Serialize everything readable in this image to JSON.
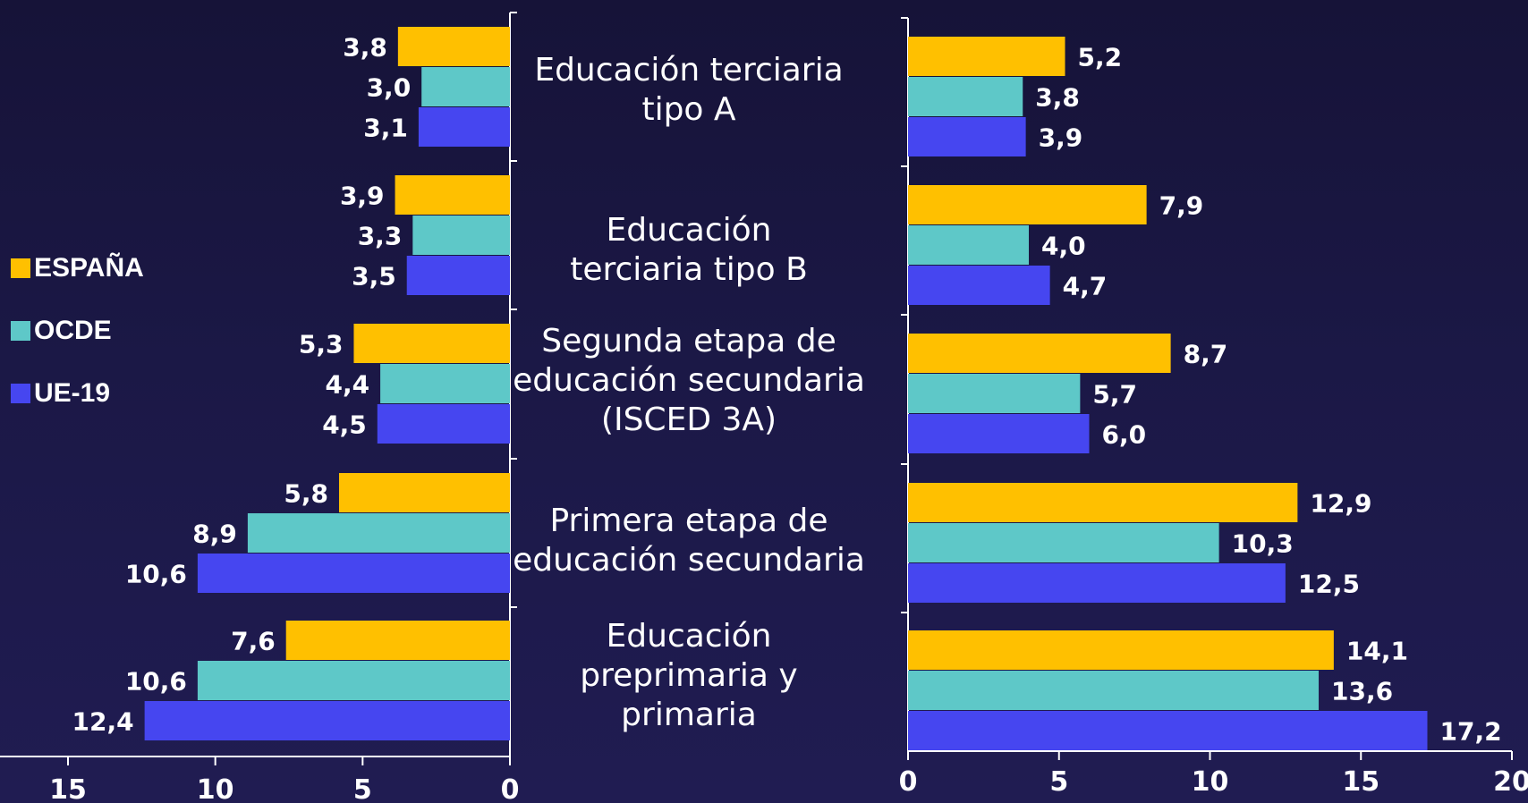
{
  "chart_data": [
    {
      "type": "bar",
      "orientation": "horizontal",
      "x_reversed": true,
      "categories": [
        "Educación terciaria tipo A",
        "Educación terciaria tipo B",
        "Segunda etapa de educación secundaria (ISCED 3A)",
        "Primera etapa de educación secundaria",
        "Educación preprimaria y primaria"
      ],
      "series": [
        {
          "name": "ESPAÑA",
          "color": "#ffc000",
          "values": [
            3.8,
            3.9,
            5.3,
            5.8,
            7.6
          ],
          "labels": [
            "3,8",
            "3,9",
            "5,3",
            "5,8",
            "7,6"
          ]
        },
        {
          "name": "OCDE",
          "color": "#5ec8c8",
          "values": [
            3.0,
            3.3,
            4.4,
            8.9,
            10.6
          ],
          "labels": [
            "3,0",
            "3,3",
            "4,4",
            "8,9",
            "10,6"
          ]
        },
        {
          "name": "UE-19",
          "color": "#4646f0",
          "values": [
            3.1,
            3.5,
            4.5,
            10.6,
            12.4
          ],
          "labels": [
            "3,1",
            "3,5",
            "4,5",
            "10,6",
            "12,4"
          ]
        }
      ],
      "xlim": [
        0,
        15
      ],
      "xticks": [
        15,
        10,
        5,
        0
      ]
    },
    {
      "type": "bar",
      "orientation": "horizontal",
      "categories": [
        "Educación terciaria tipo A",
        "Educación terciaria tipo B",
        "Segunda etapa de educación secundaria (ISCED 3A)",
        "Primera etapa de educación secundaria",
        "Educación preprimaria y primaria"
      ],
      "series": [
        {
          "name": "ESPAÑA",
          "color": "#ffc000",
          "values": [
            5.2,
            7.9,
            8.7,
            12.9,
            14.1
          ],
          "labels": [
            "5,2",
            "7,9",
            "8,7",
            "12,9",
            "14,1"
          ]
        },
        {
          "name": "OCDE",
          "color": "#5ec8c8",
          "values": [
            3.8,
            4.0,
            5.7,
            10.3,
            13.6
          ],
          "labels": [
            "3,8",
            "4,0",
            "5,7",
            "10,3",
            "13,6"
          ]
        },
        {
          "name": "UE-19",
          "color": "#4646f0",
          "values": [
            3.9,
            4.7,
            6.0,
            12.5,
            17.2
          ],
          "labels": [
            "3,9",
            "4,7",
            "6,0",
            "12,5",
            "17,2"
          ]
        }
      ],
      "xlim": [
        0,
        20
      ],
      "xticks": [
        0,
        5,
        10,
        15,
        20
      ]
    }
  ],
  "category_labels": [
    "Educación terciaria\ntipo A",
    "Educación\nterciaria tipo B",
    "Segunda etapa de\neducación secundaria\n(ISCED 3A)",
    "Primera etapa de\neducación secundaria",
    "Educación\npreprimaria y\nprimaria"
  ],
  "legend": [
    {
      "label": "ESPAÑA",
      "color": "#ffc000"
    },
    {
      "label": "OCDE",
      "color": "#5ec8c8"
    },
    {
      "label": "UE-19",
      "color": "#4646f0"
    }
  ],
  "colors": {
    "background": "#1b1846",
    "axis": "#ffffff",
    "text": "#ffffff"
  }
}
